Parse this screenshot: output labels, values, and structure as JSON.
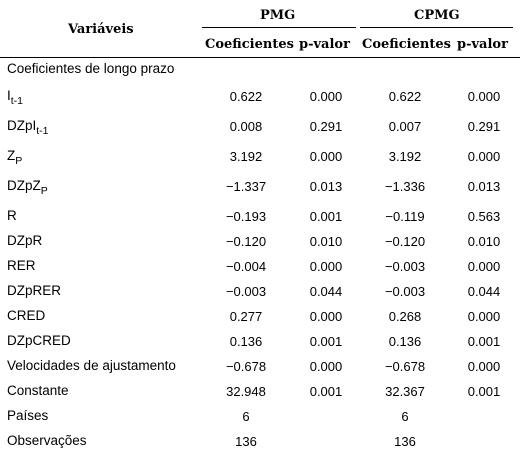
{
  "header": {
    "variables": "Variáveis",
    "pmg": "PMG",
    "cpmg": "CPMG",
    "coef_pmg": "Coeficientes",
    "pval_pmg": "p-valor",
    "coef_cpmg": "Coeficientes",
    "pval_cpmg": "p-valor"
  },
  "section_title": "Coeficientes de longo prazo",
  "rows": [
    {
      "label": "I",
      "label_sub": "t-1",
      "pmg_coef": "0.622",
      "pmg_p": "0.000",
      "cpmg_coef": "0.622",
      "cpmg_p": "0.000"
    },
    {
      "label": "DZpI",
      "label_sub": "t-1",
      "pmg_coef": "0.008",
      "pmg_p": "0.291",
      "cpmg_coef": "0.007",
      "cpmg_p": "0.291"
    },
    {
      "label": "Z",
      "label_sub": "P",
      "pmg_coef": "3.192",
      "pmg_p": "0.000",
      "cpmg_coef": "3.192",
      "cpmg_p": "0.000"
    },
    {
      "label": "DZpZ",
      "label_sub": "P",
      "pmg_coef": "−1.337",
      "pmg_p": "0.013",
      "cpmg_coef": "−1.336",
      "cpmg_p": "0.013"
    },
    {
      "label": "R",
      "label_sub": "",
      "pmg_coef": "−0.193",
      "pmg_p": "0.001",
      "cpmg_coef": "−0.119",
      "cpmg_p": "0.563"
    },
    {
      "label": "DZpR",
      "label_sub": "",
      "pmg_coef": "−0.120",
      "pmg_p": "0.010",
      "cpmg_coef": "−0.120",
      "cpmg_p": "0.010"
    },
    {
      "label": "RER",
      "label_sub": "",
      "pmg_coef": "−0.004",
      "pmg_p": "0.000",
      "cpmg_coef": "−0.003",
      "cpmg_p": "0.000"
    },
    {
      "label": "DZpRER",
      "label_sub": "",
      "pmg_coef": "−0.003",
      "pmg_p": "0.044",
      "cpmg_coef": "−0.003",
      "cpmg_p": "0.044"
    },
    {
      "label": "CRED",
      "label_sub": "",
      "pmg_coef": "0.277",
      "pmg_p": "0.000",
      "cpmg_coef": "0.268",
      "cpmg_p": "0.000"
    },
    {
      "label": "DZpCRED",
      "label_sub": "",
      "pmg_coef": "0.136",
      "pmg_p": "0.001",
      "cpmg_coef": "0.136",
      "cpmg_p": "0.001"
    },
    {
      "label": "Velocidades de ajustamento",
      "label_sub": "",
      "pmg_coef": "−0.678",
      "pmg_p": "0.000",
      "cpmg_coef": "−0.678",
      "cpmg_p": "0.000"
    },
    {
      "label": "Constante",
      "label_sub": "",
      "pmg_coef": "32.948",
      "pmg_p": "0.001",
      "cpmg_coef": "32.367",
      "cpmg_p": "0.001"
    },
    {
      "label": "Países",
      "label_sub": "",
      "pmg_coef": "6",
      "pmg_p": "",
      "cpmg_coef": "6",
      "cpmg_p": ""
    },
    {
      "label": "Observações",
      "label_sub": "",
      "pmg_coef": "136",
      "pmg_p": "",
      "cpmg_coef": "136",
      "cpmg_p": ""
    }
  ]
}
